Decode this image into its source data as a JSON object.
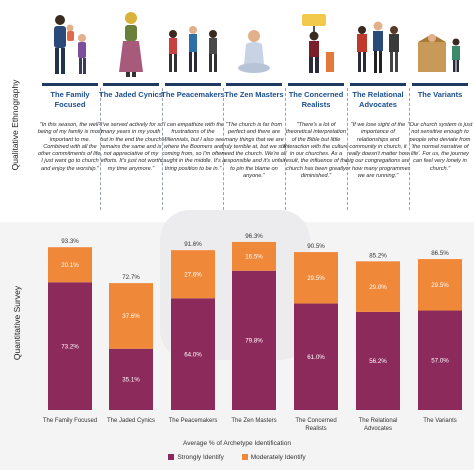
{
  "side_labels": {
    "top": "Qualitative Ethnography",
    "bottom": "Quantitative Survey"
  },
  "archetypes": [
    {
      "name": "The Family Focused",
      "quote": "\"In this season, the well-being of my family is most important to me. Combined with all the other commitments of life, I just want go to church and enjoy the worship.\""
    },
    {
      "name": "The Jaded Cynics",
      "quote": "\"I've served actively for so many years in my youth but in the end the church remains the same and is not appreciative of my efforts. It's just not worth my time anymore.\""
    },
    {
      "name": "The Peacemakers",
      "quote": "\"I can empathize with the frustrations of the Millennials, but I also see where the Boomers are coming from, so I'm often caught in the middle. It's a tiring position to be in.\""
    },
    {
      "name": "The Zen Masters",
      "quote": "\"The church is far from perfect and there are many things that we are truly terrible at, but we still need the church. We're all responsible and it's unfair to pin the blame on anyone.\""
    },
    {
      "name": "The Concerned Realists",
      "quote": "\"There's a lot of theoretical interpretation of the Bible but little interaction with the culture in our churches. As a result, the influence of the church has been greatly diminished.\""
    },
    {
      "name": "The Relational Advocates",
      "quote": "\"If we lose sight of the importance of relationships and community in church, it really doesn't matter how big our congregations are or how many programmes we are running.\""
    },
    {
      "name": "The Variants",
      "quote": "\"Our church system is just not sensitive enough to people who deviate from 'the normal narrative of life'. For us, the journey can feel very lonely in church.\""
    }
  ],
  "chart_data": {
    "type": "bar",
    "stacked": true,
    "categories": [
      "The Family Focused",
      "The Jaded Cynics",
      "The Peacemakers",
      "The Zen Masters",
      "The Concerned Realists",
      "The Relational Advocates",
      "The Variants"
    ],
    "category_labels": [
      [
        "The Family Focused"
      ],
      [
        "The Jaded Cynics"
      ],
      [
        "The Peacemakers"
      ],
      [
        "The Zen Masters"
      ],
      [
        "The Concerned",
        "Realists"
      ],
      [
        "The Relational",
        "Advocates"
      ],
      [
        "The Variants"
      ]
    ],
    "series": [
      {
        "name": "Strongly Identify",
        "color": "#8c2a5c",
        "values": [
          73.2,
          35.1,
          64.0,
          79.8,
          61.0,
          56.2,
          57.0
        ],
        "labels": [
          "73.2%",
          "35.1%",
          "64.0%",
          "79.8%",
          "61.0%",
          "56.2%",
          "57.0%"
        ]
      },
      {
        "name": "Moderately Identify",
        "color": "#f0883a",
        "values": [
          20.1,
          37.6,
          27.6,
          16.5,
          29.5,
          29.0,
          29.5
        ],
        "labels": [
          "20.1%",
          "37.6%",
          "27.6%",
          "16.5%",
          "29.5%",
          "29.0%",
          "29.5%"
        ]
      }
    ],
    "totals": [
      93.3,
      72.7,
      91.6,
      96.3,
      90.5,
      85.2,
      86.5
    ],
    "total_labels": [
      "93.3%",
      "72.7%",
      "91.6%",
      "96.3%",
      "90.5%",
      "85.2%",
      "86.5%"
    ],
    "xlabel": "Average % of Archetype Identification",
    "ylim": [
      0,
      100
    ],
    "legend_position": "bottom-center"
  }
}
